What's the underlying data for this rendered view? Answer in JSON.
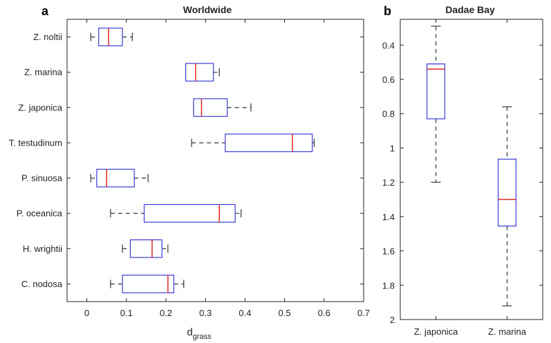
{
  "chart_data": [
    {
      "panel": "a",
      "type": "boxplot",
      "orientation": "horizontal",
      "title": "Worldwide",
      "xlabel_base": "d",
      "xlabel_sub": "grass",
      "xlim": [
        -0.05,
        0.7
      ],
      "xticks": [
        "0",
        "0.1",
        "0.2",
        "0.3",
        "0.4",
        "0.5",
        "0.6",
        "0.7"
      ],
      "categories": [
        "Z. noltii",
        "Z. marina",
        "Z. japonica",
        "T. testudinum",
        "P. sinuosa",
        "P. oceanica",
        "H. wrightii",
        "C. nodosa"
      ],
      "boxes": [
        {
          "whisker_low": 0.01,
          "q1": 0.03,
          "median": 0.055,
          "q3": 0.09,
          "whisker_high": 0.115
        },
        {
          "whisker_low": 0.25,
          "q1": 0.25,
          "median": 0.275,
          "q3": 0.32,
          "whisker_high": 0.335
        },
        {
          "whisker_low": 0.27,
          "q1": 0.27,
          "median": 0.29,
          "q3": 0.355,
          "whisker_high": 0.415
        },
        {
          "whisker_low": 0.265,
          "q1": 0.35,
          "median": 0.52,
          "q3": 0.57,
          "whisker_high": 0.575
        },
        {
          "whisker_low": 0.01,
          "q1": 0.025,
          "median": 0.05,
          "q3": 0.12,
          "whisker_high": 0.155
        },
        {
          "whisker_low": 0.06,
          "q1": 0.145,
          "median": 0.335,
          "q3": 0.375,
          "whisker_high": 0.39
        },
        {
          "whisker_low": 0.09,
          "q1": 0.11,
          "median": 0.165,
          "q3": 0.19,
          "whisker_high": 0.205
        },
        {
          "whisker_low": 0.06,
          "q1": 0.09,
          "median": 0.205,
          "q3": 0.22,
          "whisker_high": 0.245
        }
      ]
    },
    {
      "panel": "b",
      "type": "boxplot",
      "orientation": "vertical",
      "title": "Dadae Bay",
      "ylim": [
        0.25,
        2.0
      ],
      "yreversed": true,
      "yticks": [
        0.4,
        0.6,
        0.8,
        1,
        1.2,
        1.4,
        1.6,
        1.8,
        2
      ],
      "ytick_labels": [
        "0.4",
        "0.6",
        "0.8",
        "1",
        "1.2",
        "1.4",
        "1.6",
        "1.8",
        "2"
      ],
      "categories": [
        "Z. japonica",
        "Z. marina"
      ],
      "boxes": [
        {
          "whisker_low": 0.29,
          "q1": 0.51,
          "median": 0.54,
          "q3": 0.83,
          "whisker_high": 1.2
        },
        {
          "whisker_low": 0.76,
          "q1": 1.065,
          "median": 1.3,
          "q3": 1.455,
          "whisker_high": 1.92
        }
      ]
    }
  ],
  "colors": {
    "box": "#3a3ad8",
    "median": "#e0281e",
    "whisker": "#444444",
    "axis": "#222222"
  }
}
